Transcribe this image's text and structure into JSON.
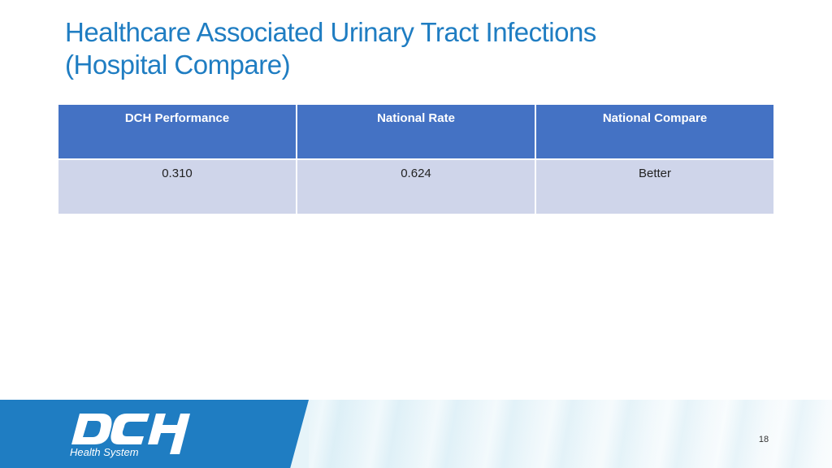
{
  "slide": {
    "title_line1": "Healthcare Associated Urinary Tract Infections",
    "title_line2": "(Hospital Compare)",
    "page_number": "18"
  },
  "table": {
    "headers": [
      "DCH Performance",
      "National Rate",
      "National Compare"
    ],
    "rows": [
      [
        "0.310",
        "0.624",
        "Better"
      ]
    ]
  },
  "logo": {
    "wordmark": "DCH",
    "tagline": "Health System",
    "icon": "dch-health-system-logo"
  },
  "colors": {
    "title": "#1F7DC2",
    "header_bg": "#4472C4",
    "row_bg": "#CFD5EA",
    "footer_band": "#1F7DC2"
  }
}
